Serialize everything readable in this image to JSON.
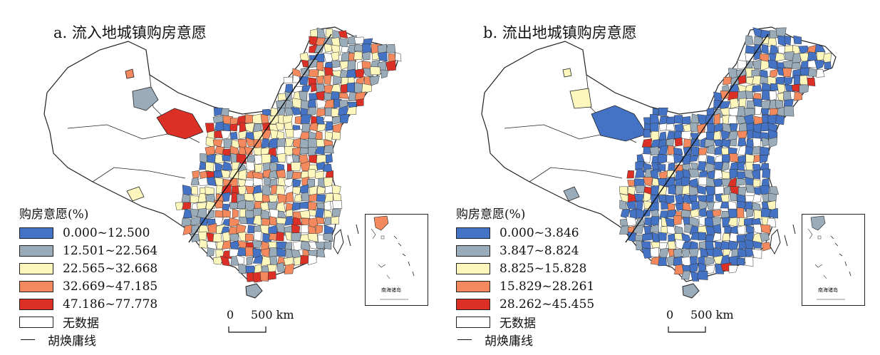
{
  "panels": [
    {
      "title": "a. 流入地城镇购房意愿",
      "legend": {
        "title": "购房意愿(%)",
        "classes": [
          {
            "label": "0.000~12.500",
            "color": "#4472c4"
          },
          {
            "label": "12.501~22.564",
            "color": "#9aabb9"
          },
          {
            "label": "22.565~32.668",
            "color": "#fdf7bd"
          },
          {
            "label": "32.669~47.185",
            "color": "#f4895e"
          },
          {
            "label": "47.186~77.778",
            "color": "#dc3026"
          }
        ],
        "no_data_label": "无数据",
        "line_label": "胡焕庸线"
      },
      "scale": {
        "zero": "0",
        "distance": "500 km"
      },
      "inset_label": "南海诸岛"
    },
    {
      "title": "b. 流出地城镇购房意愿",
      "legend": {
        "title": "购房意愿(%)",
        "classes": [
          {
            "label": "0.000~3.846",
            "color": "#4472c4"
          },
          {
            "label": "3.847~8.824",
            "color": "#9aabb9"
          },
          {
            "label": "8.825~15.828",
            "color": "#fdf7bd"
          },
          {
            "label": "15.829~28.261",
            "color": "#f4895e"
          },
          {
            "label": "28.262~45.455",
            "color": "#dc3026"
          }
        ],
        "no_data_label": "无数据",
        "line_label": "胡焕庸线"
      },
      "scale": {
        "zero": "0",
        "distance": "500 km"
      },
      "inset_label": "南海诸岛"
    }
  ],
  "no_data_color": "#ffffff"
}
